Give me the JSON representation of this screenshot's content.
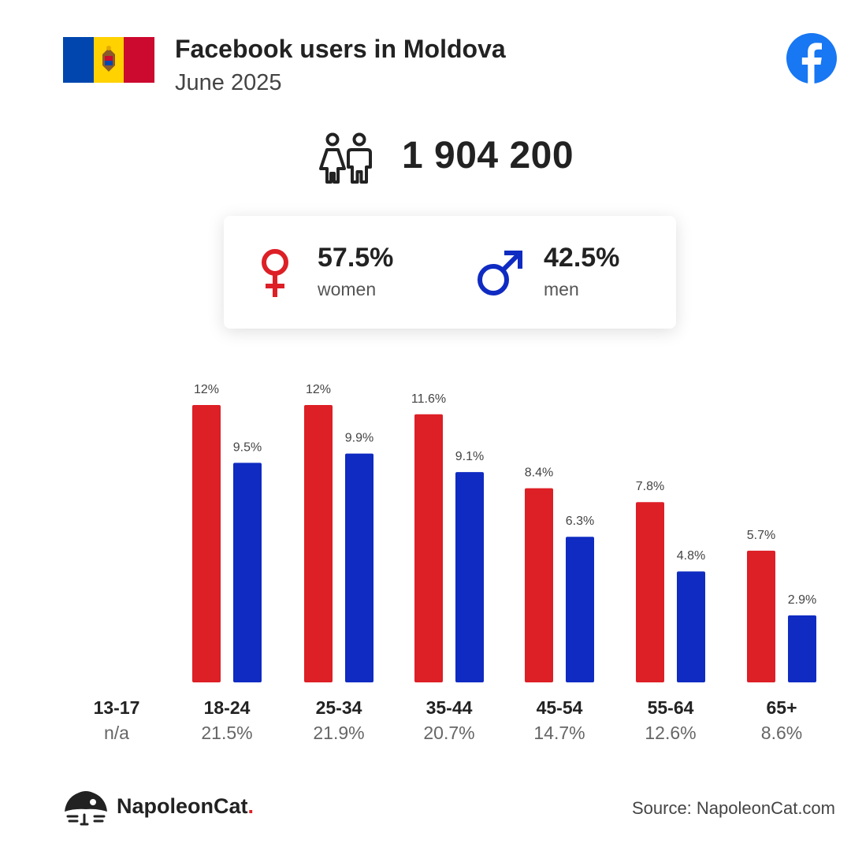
{
  "header": {
    "title": "Facebook users in Moldova",
    "subtitle": "June 2025"
  },
  "summary": {
    "total_users": "1 904 200",
    "women_pct": "57.5%",
    "women_label": "women",
    "men_pct": "42.5%",
    "men_label": "men"
  },
  "colors": {
    "women": "#DD1F26",
    "men": "#0F2BC2",
    "facebook": "#1877F2",
    "flag_blue": "#0046AE",
    "flag_yellow": "#FFD200",
    "flag_red": "#CC092F"
  },
  "icons": {
    "flag": "moldova-flag-icon",
    "facebook": "facebook-logo-icon",
    "people": "people-icon",
    "female": "female-symbol-icon",
    "male": "male-symbol-icon",
    "brand": "napoleoncat-logo-icon"
  },
  "chart_data": {
    "type": "bar",
    "categories": [
      "13-17",
      "18-24",
      "25-34",
      "35-44",
      "45-54",
      "55-64",
      "65+"
    ],
    "category_totals": [
      "n/a",
      "21.5%",
      "21.9%",
      "20.7%",
      "14.7%",
      "12.6%",
      "8.6%"
    ],
    "series": [
      {
        "name": "women",
        "values": [
          null,
          12,
          12,
          11.6,
          8.4,
          7.8,
          5.7
        ],
        "labels": [
          "",
          "12%",
          "12%",
          "11.6%",
          "8.4%",
          "7.8%",
          "5.7%"
        ]
      },
      {
        "name": "men",
        "values": [
          null,
          9.5,
          9.9,
          9.1,
          6.3,
          4.8,
          2.9
        ],
        "labels": [
          "",
          "9.5%",
          "9.9%",
          "9.1%",
          "6.3%",
          "4.8%",
          "2.9%"
        ]
      }
    ],
    "ylim": [
      0,
      12
    ],
    "grid": false,
    "legend": "none"
  },
  "footer": {
    "brand_name": "NapoleonCat",
    "brand_dot": ".",
    "source": "Source: NapoleonCat.com"
  }
}
